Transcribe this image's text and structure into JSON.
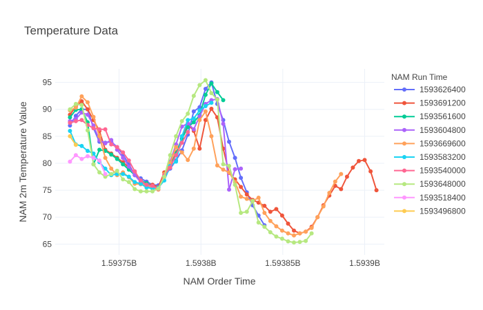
{
  "chart_data": {
    "type": "line",
    "title": "Temperature Data",
    "xlabel": "NAM Order Time",
    "ylabel": "NAM 2m Temperature Value",
    "xlim": [
      1593711000,
      1593912000
    ],
    "ylim": [
      63,
      97.5
    ],
    "x_ticks": [
      {
        "value": 1593750000,
        "label": "1.59375B"
      },
      {
        "value": 1593800000,
        "label": "1.5938B"
      },
      {
        "value": 1593850000,
        "label": "1.59385B"
      },
      {
        "value": 1593900000,
        "label": "1.5939B"
      }
    ],
    "y_ticks": [
      65,
      70,
      75,
      80,
      85,
      90,
      95
    ],
    "grid": true,
    "legend": {
      "title": "NAM Run Time",
      "placement": "right"
    },
    "series": [
      {
        "name": "1593626400",
        "color": "#636efa",
        "x": [
          1593720000,
          1593723600,
          1593727200,
          1593730800,
          1593734400,
          1593738000,
          1593741600,
          1593745200,
          1593748800,
          1593752400,
          1593756000,
          1593759600,
          1593763200,
          1593766800,
          1593770400,
          1593774000,
          1593777600,
          1593781200,
          1593784800,
          1593788400,
          1593792000,
          1593795600,
          1593799200,
          1593802800,
          1593806400,
          1593810000,
          1593813600,
          1593817200,
          1593820800,
          1593824400,
          1593828000,
          1593831600,
          1593835200,
          1593838800
        ],
        "y": [
          87.0,
          88.8,
          90.0,
          90.0,
          86.5,
          84.0,
          83.8,
          84.0,
          83.0,
          81.6,
          79.8,
          77.8,
          77.2,
          76.6,
          76.0,
          75.9,
          77.5,
          79.0,
          80.5,
          82.4,
          85.3,
          89.6,
          90.4,
          93.8,
          95.0,
          91.0,
          88.0,
          84.0,
          81.0,
          77.3,
          74.6,
          72.2,
          70.3,
          68.5
        ]
      },
      {
        "name": "1593691200",
        "color": "#ef553b",
        "x": [
          1593720000,
          1593723600,
          1593727200,
          1593730800,
          1593734400,
          1593738000,
          1593741600,
          1593745200,
          1593748800,
          1593752400,
          1593756000,
          1593759600,
          1593763200,
          1593766800,
          1593770400,
          1593774000,
          1593777600,
          1593781200,
          1593784800,
          1593788400,
          1593792000,
          1593795600,
          1593799200,
          1593802800,
          1593806400,
          1593810000,
          1593813600,
          1593817200,
          1593820800,
          1593824400,
          1593828000,
          1593831600,
          1593835200,
          1593838800,
          1593842400,
          1593846000,
          1593849600,
          1593853200,
          1593856800,
          1593860400,
          1593864000,
          1593867600,
          1593871200,
          1593874800,
          1593878400,
          1593882000,
          1593885600,
          1593889200,
          1593892800,
          1593896400,
          1593900000,
          1593903600,
          1593907200
        ],
        "y": [
          89.0,
          90.5,
          91.5,
          90.0,
          88.0,
          86.0,
          82.5,
          81.8,
          81.0,
          80.2,
          79.2,
          78.2,
          76.6,
          76.0,
          76.0,
          75.6,
          78.3,
          79.5,
          82.0,
          84.6,
          87.3,
          86.0,
          82.7,
          88.0,
          90.1,
          88.5,
          82.7,
          78.2,
          77.0,
          75.6,
          74.2,
          73.2,
          72.7,
          72.1,
          71.0,
          71.5,
          70.3,
          68.8,
          67.5,
          67.0,
          67.3,
          68.2,
          70.0,
          72.2,
          74.0,
          75.8,
          75.2,
          77.5,
          79.2,
          80.4,
          80.6,
          78.5,
          75.0
        ]
      },
      {
        "name": "1593561600",
        "color": "#00cc96",
        "x": [
          1593720000,
          1593723600,
          1593727200,
          1593730800,
          1593734400,
          1593738000,
          1593741600,
          1593745200,
          1593748800,
          1593752400,
          1593756000,
          1593759600,
          1593763200,
          1593766800,
          1593770400,
          1593774000,
          1593777600,
          1593781200,
          1593784800,
          1593788400,
          1593792000,
          1593795600,
          1593799200,
          1593802800,
          1593806400,
          1593810000,
          1593813600
        ],
        "y": [
          88.5,
          89.9,
          90.0,
          87.6,
          79.8,
          82.5,
          82.3,
          81.6,
          80.8,
          79.8,
          78.8,
          77.8,
          76.8,
          76.3,
          75.6,
          75.3,
          77.6,
          79.3,
          81.8,
          84.5,
          86.7,
          87.6,
          88.9,
          92.7,
          94.8,
          93.2,
          91.7
        ]
      },
      {
        "name": "1593604800",
        "color": "#ab63fa",
        "x": [
          1593720000,
          1593723600,
          1593727200,
          1593730800,
          1593734400,
          1593738000,
          1593741600,
          1593745200,
          1593748800,
          1593752400,
          1593756000,
          1593759600,
          1593763200,
          1593766800,
          1593770400,
          1593774000,
          1593777600,
          1593781200,
          1593784800,
          1593788400,
          1593792000,
          1593795600,
          1593799200,
          1593802800,
          1593806400,
          1593810000,
          1593813600,
          1593817200,
          1593820800,
          1593824400
        ],
        "y": [
          87.8,
          88.2,
          89.4,
          89.0,
          87.0,
          84.3,
          83.7,
          84.3,
          82.5,
          81.0,
          79.4,
          77.8,
          76.5,
          75.8,
          75.4,
          75.2,
          77.5,
          80.3,
          83.5,
          86.8,
          87.4,
          86.3,
          88.7,
          91.0,
          91.7,
          91.9,
          87.3,
          75.1,
          78.9,
          79.0
        ]
      },
      {
        "name": "1593669600",
        "color": "#ffa15a",
        "x": [
          1593720000,
          1593723600,
          1593727200,
          1593730800,
          1593734400,
          1593738000,
          1593741600,
          1593745200,
          1593748800,
          1593752400,
          1593756000,
          1593759600,
          1593763200,
          1593766800,
          1593770400,
          1593774000,
          1593777600,
          1593781200,
          1593784800,
          1593788400,
          1593792000,
          1593795600,
          1593799200,
          1593802800,
          1593806400,
          1593810000,
          1593813600,
          1593817200,
          1593820800,
          1593824400,
          1593828000,
          1593831600,
          1593835200,
          1593838800,
          1593842400,
          1593846000,
          1593849600,
          1593853200,
          1593856800,
          1593860400,
          1593864000,
          1593867600,
          1593871200,
          1593874800,
          1593878400,
          1593882000,
          1593885600
        ],
        "y": [
          89.8,
          90.3,
          92.4,
          91.3,
          88.6,
          85.0,
          81.0,
          79.0,
          77.8,
          78.3,
          77.4,
          76.2,
          76.1,
          76.0,
          75.5,
          75.1,
          78.0,
          80.0,
          83.0,
          82.0,
          80.6,
          82.7,
          88.0,
          89.6,
          85.0,
          79.6,
          78.8,
          78.3,
          76.5,
          73.8,
          73.4,
          73.0,
          73.6,
          70.8,
          69.3,
          68.3,
          67.5,
          67.0,
          66.6,
          67.0,
          67.3,
          68.0,
          70.0,
          72.0,
          74.5,
          76.6,
          78.0
        ]
      },
      {
        "name": "1593583200",
        "color": "#19d3f3",
        "x": [
          1593720000,
          1593723600,
          1593727200,
          1593730800,
          1593734400,
          1593738000,
          1593741600,
          1593745200,
          1593748800,
          1593752400,
          1593756000,
          1593759600,
          1593763200,
          1593766800,
          1593770400,
          1593774000,
          1593777600,
          1593781200,
          1593784800,
          1593788400,
          1593792000,
          1593795600,
          1593799200,
          1593802800,
          1593806400
        ],
        "y": [
          86.0,
          83.5,
          83.2,
          82.3,
          81.8,
          80.2,
          79.0,
          77.8,
          78.0,
          78.0,
          77.5,
          76.5,
          76.2,
          75.5,
          75.3,
          75.5,
          76.8,
          79.5,
          80.3,
          85.0,
          88.0,
          88.3,
          89.8,
          90.6,
          91.2
        ]
      },
      {
        "name": "1593540000",
        "color": "#ff6692",
        "x": [
          1593720000,
          1593723600,
          1593727200,
          1593730800,
          1593734400,
          1593738000,
          1593741600,
          1593745200,
          1593748800,
          1593752400,
          1593756000,
          1593759600,
          1593763200,
          1593766800,
          1593770400,
          1593774000,
          1593777600,
          1593781200,
          1593784800,
          1593788400,
          1593792000
        ],
        "y": [
          87.5,
          87.8,
          88.0,
          87.1,
          86.5,
          86.3,
          86.3,
          83.5,
          83.0,
          82.0,
          80.5,
          78.5,
          76.8,
          76.0,
          75.8,
          75.2,
          77.8,
          79.2,
          81.5,
          83.8,
          85.8
        ]
      },
      {
        "name": "1593648000",
        "color": "#b6e880",
        "x": [
          1593720000,
          1593723600,
          1593727200,
          1593730800,
          1593734400,
          1593738000,
          1593741600,
          1593745200,
          1593748800,
          1593752400,
          1593756000,
          1593759600,
          1593763200,
          1593766800,
          1593770400,
          1593774000,
          1593777600,
          1593781200,
          1593784800,
          1593788400,
          1593792000,
          1593795600,
          1593799200,
          1593802800,
          1593806400,
          1593810000,
          1593813600,
          1593817200,
          1593820800,
          1593824400,
          1593828000,
          1593831600,
          1593835200,
          1593838800,
          1593842400,
          1593846000,
          1593849600,
          1593853200,
          1593856800,
          1593860400,
          1593864000,
          1593867600
        ],
        "y": [
          90.0,
          91.0,
          90.8,
          86.1,
          79.8,
          78.3,
          77.5,
          78.0,
          78.6,
          77.0,
          76.5,
          75.2,
          74.8,
          74.8,
          74.8,
          75.3,
          77.5,
          81.5,
          85.0,
          87.8,
          89.2,
          92.5,
          94.5,
          95.4,
          93.0,
          91.8,
          79.8,
          79.5,
          76.0,
          70.8,
          71.0,
          73.0,
          69.0,
          68.2,
          67.2,
          66.4,
          66.0,
          65.5,
          65.3,
          65.4,
          65.6,
          67.0
        ]
      },
      {
        "name": "1593518400",
        "color": "#ff97ff",
        "x": [
          1593720000,
          1593723600,
          1593727200,
          1593730800,
          1593734400,
          1593738000,
          1593741600
        ],
        "y": [
          80.3,
          81.5,
          80.8,
          81.3,
          81.0,
          80.5,
          78.0
        ]
      },
      {
        "name": "1593496800",
        "color": "#fecb52",
        "x": [
          1593720000,
          1593723600
        ],
        "y": [
          85.0,
          83.4
        ]
      }
    ]
  }
}
